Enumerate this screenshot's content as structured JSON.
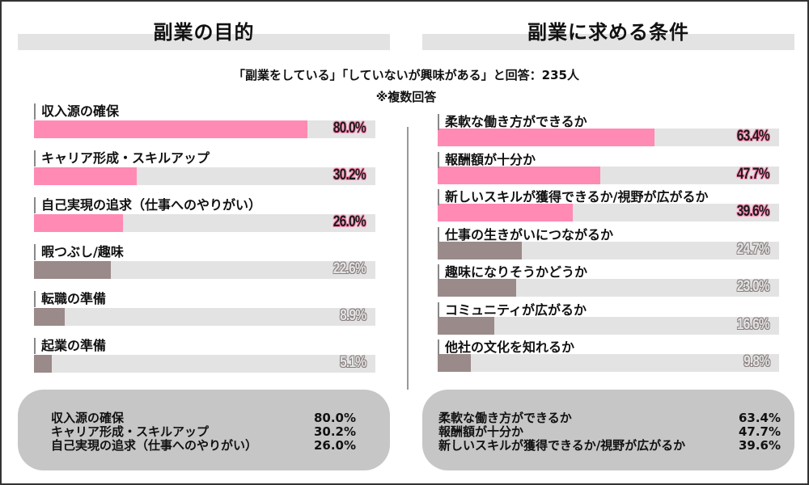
{
  "left_panel": {
    "title": "副業の目的",
    "bar_color_top": "#ff8ab4",
    "bar_color_rest": "#9a8a8a",
    "items": [
      {
        "label": "収入源の確保",
        "value": 80.0,
        "display": "80.0%",
        "highlight": true
      },
      {
        "label": "キャリア形成・スキルアップ",
        "value": 30.2,
        "display": "30.2%",
        "highlight": true
      },
      {
        "label": "自己実現の追求（仕事へのやりがい）",
        "value": 26.0,
        "display": "26.0%",
        "highlight": true
      },
      {
        "label": "暇つぶし/趣味",
        "value": 22.6,
        "display": "22.6%",
        "highlight": false
      },
      {
        "label": "転職の準備",
        "value": 8.9,
        "display": "8.9%",
        "highlight": false
      },
      {
        "label": "起業の準備",
        "value": 5.1,
        "display": "5.1%",
        "highlight": false
      }
    ],
    "summary": [
      {
        "label": "収入源の確保",
        "value": "80.0%"
      },
      {
        "label": "キャリア形成・スキルアップ",
        "value": "30.2%"
      },
      {
        "label": "自己実現の追求（仕事へのやりがい）",
        "value": "26.0%"
      }
    ]
  },
  "right_panel": {
    "title": "副業に求める条件",
    "items": [
      {
        "label": "柔軟な働き方ができるか",
        "value": 63.4,
        "display": "63.4%",
        "highlight": true
      },
      {
        "label": "報酬額が十分か",
        "value": 47.7,
        "display": "47.7%",
        "highlight": true
      },
      {
        "label": "新しいスキルが獲得できるか/視野が広がるか",
        "value": 39.6,
        "display": "39.6%",
        "highlight": true
      },
      {
        "label": "仕事の生きがいにつながるか",
        "value": 24.7,
        "display": "24.7%",
        "highlight": false
      },
      {
        "label": "趣味になりそうかどうか",
        "value": 23.0,
        "display": "23.0%",
        "highlight": false
      },
      {
        "label": "コミュニティが広がるか",
        "value": 16.6,
        "display": "16.6%",
        "highlight": false
      },
      {
        "label": "他社の文化を知れるか",
        "value": 9.8,
        "display": "9.8%",
        "highlight": false
      }
    ],
    "summary": [
      {
        "label": "柔軟な働き方ができるか",
        "value": "63.4%"
      },
      {
        "label": "報酬額が十分か",
        "value": "47.7%"
      },
      {
        "label": "新しいスキルが獲得できるか/視野が広がるか",
        "value": "39.6%"
      }
    ]
  },
  "subtitle": {
    "line1": "「副業をしている」「していないが興味がある」と回答：235人",
    "line2": "※複数回答"
  },
  "chart_data": [
    {
      "type": "bar",
      "orientation": "horizontal",
      "title": "副業の目的",
      "categories": [
        "収入源の確保",
        "キャリア形成・スキルアップ",
        "自己実現の追求（仕事へのやりがい）",
        "暇つぶし/趣味",
        "転職の準備",
        "起業の準備"
      ],
      "values": [
        80.0,
        30.2,
        26.0,
        22.6,
        8.9,
        5.1
      ],
      "unit": "%",
      "xlim": [
        0,
        100
      ],
      "grid": false,
      "note": "「副業をしている」「していないが興味がある」と回答：235人 ※複数回答"
    },
    {
      "type": "bar",
      "orientation": "horizontal",
      "title": "副業に求める条件",
      "categories": [
        "柔軟な働き方ができるか",
        "報酬額が十分か",
        "新しいスキルが獲得できるか/視野が広がるか",
        "仕事の生きがいにつながるか",
        "趣味になりそうかどうか",
        "コミュニティが広がるか",
        "他社の文化を知れるか"
      ],
      "values": [
        63.4,
        47.7,
        39.6,
        24.7,
        23.0,
        16.6,
        9.8
      ],
      "unit": "%",
      "xlim": [
        0,
        100
      ],
      "grid": false,
      "note": "「副業をしている」「していないが興味がある」と回答：235人 ※複数回答"
    }
  ]
}
